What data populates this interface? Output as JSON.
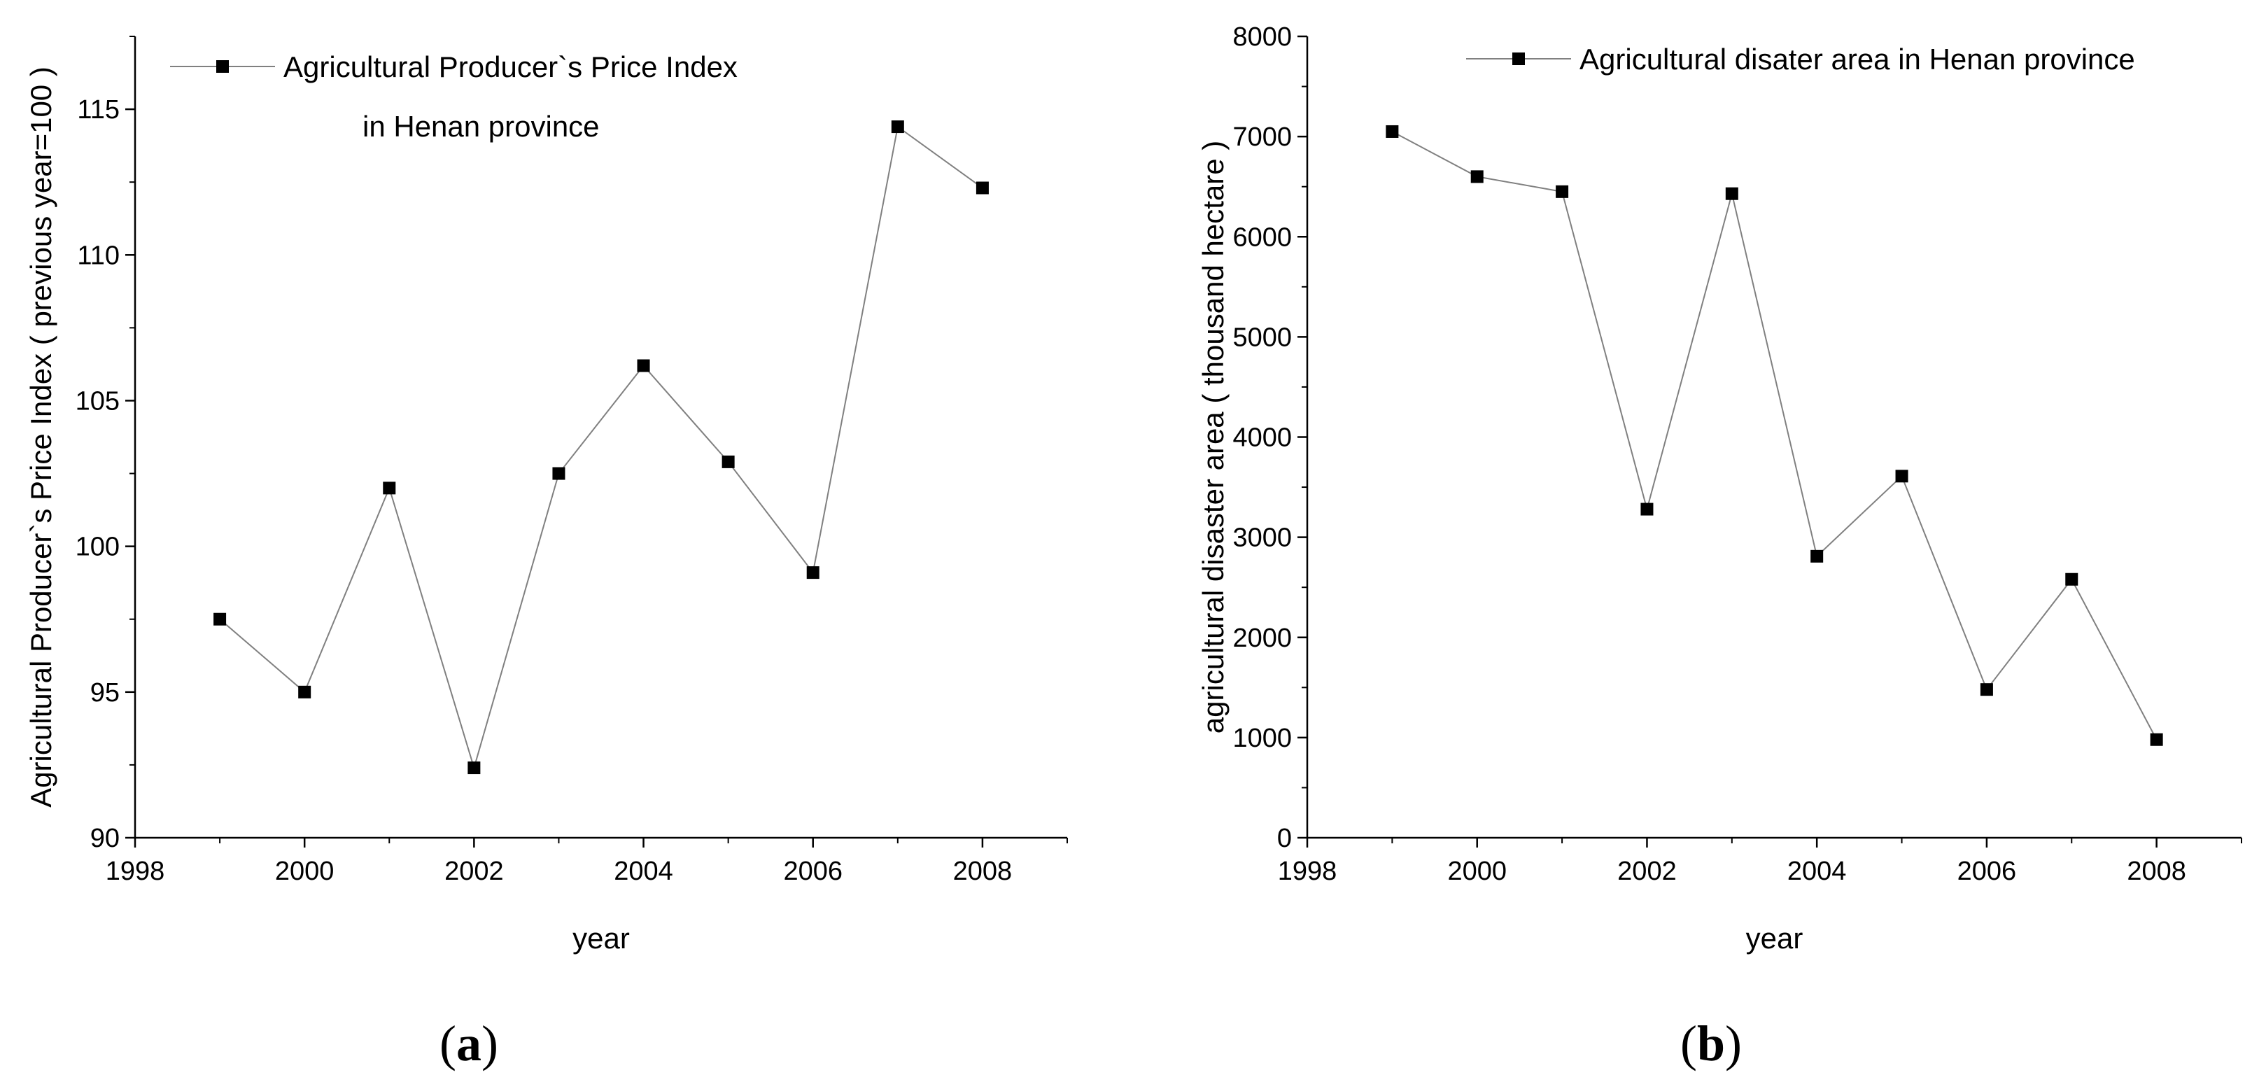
{
  "chart_data": [
    {
      "type": "line",
      "panel_label": "(a)",
      "x": [
        1999,
        2000,
        2001,
        2002,
        2003,
        2004,
        2005,
        2006,
        2007,
        2008
      ],
      "series": [
        {
          "name": "Agricultural Producer`s Price Index",
          "name_line2": "in Henan province",
          "values": [
            97.5,
            95.0,
            102.0,
            92.4,
            102.5,
            106.2,
            102.9,
            99.1,
            114.4,
            112.3
          ]
        }
      ],
      "xlabel": "year",
      "ylabel": "Agricultural Producer`s Price Index ( previous year=100 )",
      "xlim": [
        1998,
        2009
      ],
      "ylim": [
        90,
        117.5
      ],
      "xticks": [
        1998,
        2000,
        2002,
        2004,
        2006,
        2008
      ],
      "yticks": [
        90,
        95,
        100,
        105,
        110,
        115
      ],
      "legend": "top-left",
      "grid": false,
      "line_color": "#808080",
      "marker_color": "#000000"
    },
    {
      "type": "line",
      "panel_label": "(b)",
      "x": [
        1999,
        2000,
        2001,
        2002,
        2003,
        2004,
        2005,
        2006,
        2007,
        2008
      ],
      "series": [
        {
          "name": "Agricultural disater area in Henan province",
          "values": [
            7050,
            6600,
            6450,
            3280,
            6430,
            2810,
            3610,
            1480,
            2580,
            980
          ]
        }
      ],
      "xlabel": "year",
      "ylabel": "agricultural disaster area ( thousand hectare )",
      "xlim": [
        1998,
        2009
      ],
      "ylim": [
        0,
        8000
      ],
      "xticks": [
        1998,
        2000,
        2002,
        2004,
        2006,
        2008
      ],
      "yticks": [
        0,
        1000,
        2000,
        3000,
        4000,
        5000,
        6000,
        7000,
        8000
      ],
      "legend": "top-right",
      "grid": false,
      "line_color": "#808080",
      "marker_color": "#000000"
    }
  ]
}
